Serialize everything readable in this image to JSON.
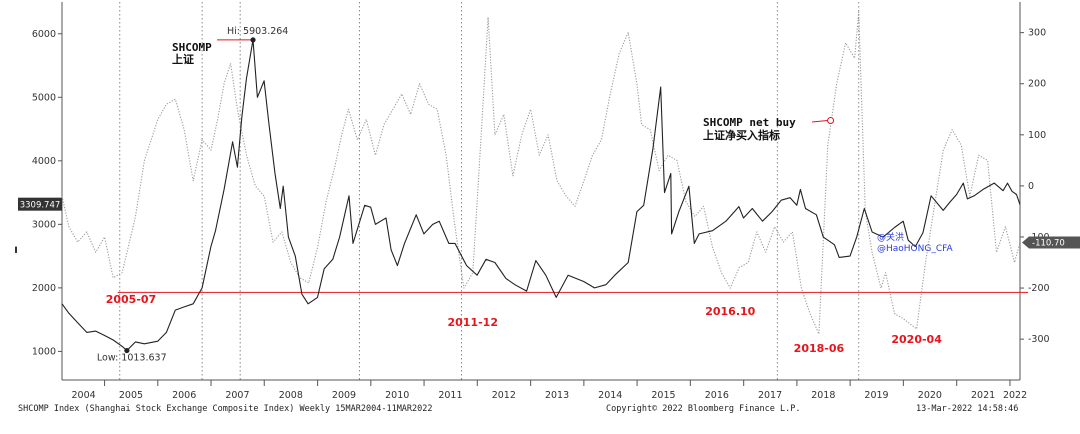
{
  "chart_data": {
    "type": "line",
    "x_range": [
      "2004-03-15",
      "2022-03-11"
    ],
    "x_ticks": [
      "2004",
      "2005",
      "2006",
      "2007",
      "2008",
      "2009",
      "2010",
      "2011",
      "2012",
      "2013",
      "2014",
      "2015",
      "2016",
      "2017",
      "2018",
      "2019",
      "2020",
      "2021",
      "2022"
    ],
    "y_left": {
      "ticks": [
        1000,
        2000,
        3000,
        4000,
        5000,
        6000
      ],
      "range": [
        550,
        6500
      ]
    },
    "y_right": {
      "ticks": [
        -300,
        -200,
        -100,
        0,
        100,
        200,
        300
      ],
      "range": [
        -380,
        360
      ]
    },
    "grid": false,
    "series": [
      {
        "name": "SHCOMP",
        "axis": "left",
        "color": "#222222",
        "style": "solid",
        "points": [
          [
            "2004-03-15",
            1750
          ],
          [
            "2004-05-01",
            1600
          ],
          [
            "2004-07-01",
            1450
          ],
          [
            "2004-09-01",
            1300
          ],
          [
            "2004-11-01",
            1320
          ],
          [
            "2005-01-01",
            1250
          ],
          [
            "2005-03-01",
            1180
          ],
          [
            "2005-05-01",
            1080
          ],
          [
            "2005-06-03",
            1013.6
          ],
          [
            "2005-08-01",
            1150
          ],
          [
            "2005-10-01",
            1120
          ],
          [
            "2005-12-31",
            1160
          ],
          [
            "2006-03-01",
            1300
          ],
          [
            "2006-05-01",
            1650
          ],
          [
            "2006-07-01",
            1700
          ],
          [
            "2006-09-01",
            1750
          ],
          [
            "2006-11-01",
            2000
          ],
          [
            "2006-12-31",
            2650
          ],
          [
            "2007-02-01",
            2900
          ],
          [
            "2007-04-01",
            3550
          ],
          [
            "2007-05-29",
            4300
          ],
          [
            "2007-07-01",
            3900
          ],
          [
            "2007-08-01",
            4700
          ],
          [
            "2007-09-01",
            5300
          ],
          [
            "2007-10-16",
            5903.3
          ],
          [
            "2007-11-15",
            5000
          ],
          [
            "2007-12-31",
            5260
          ],
          [
            "2008-02-01",
            4600
          ],
          [
            "2008-03-15",
            3800
          ],
          [
            "2008-04-20",
            3250
          ],
          [
            "2008-05-10",
            3600
          ],
          [
            "2008-06-15",
            2800
          ],
          [
            "2008-08-01",
            2500
          ],
          [
            "2008-09-15",
            1900
          ],
          [
            "2008-10-28",
            1750
          ],
          [
            "2008-12-31",
            1850
          ],
          [
            "2009-02-15",
            2300
          ],
          [
            "2009-04-15",
            2450
          ],
          [
            "2009-06-01",
            2800
          ],
          [
            "2009-08-04",
            3450
          ],
          [
            "2009-09-01",
            2700
          ],
          [
            "2009-11-20",
            3300
          ],
          [
            "2009-12-31",
            3270
          ],
          [
            "2010-02-01",
            3000
          ],
          [
            "2010-04-15",
            3100
          ],
          [
            "2010-05-20",
            2600
          ],
          [
            "2010-07-02",
            2350
          ],
          [
            "2010-08-20",
            2700
          ],
          [
            "2010-11-08",
            3150
          ],
          [
            "2010-12-31",
            2850
          ],
          [
            "2011-03-01",
            3000
          ],
          [
            "2011-04-15",
            3050
          ],
          [
            "2011-06-20",
            2700
          ],
          [
            "2011-08-01",
            2700
          ],
          [
            "2011-10-20",
            2350
          ],
          [
            "2011-12-31",
            2200
          ],
          [
            "2012-03-01",
            2450
          ],
          [
            "2012-05-01",
            2400
          ],
          [
            "2012-07-15",
            2150
          ],
          [
            "2012-09-15",
            2050
          ],
          [
            "2012-12-04",
            1950
          ],
          [
            "2013-02-05",
            2430
          ],
          [
            "2013-04-15",
            2200
          ],
          [
            "2013-06-25",
            1850
          ],
          [
            "2013-09-15",
            2200
          ],
          [
            "2013-12-31",
            2100
          ],
          [
            "2014-03-15",
            2000
          ],
          [
            "2014-06-01",
            2050
          ],
          [
            "2014-08-01",
            2200
          ],
          [
            "2014-11-01",
            2400
          ],
          [
            "2014-12-31",
            3200
          ],
          [
            "2015-02-15",
            3300
          ],
          [
            "2015-04-20",
            4200
          ],
          [
            "2015-06-12",
            5160
          ],
          [
            "2015-07-08",
            3500
          ],
          [
            "2015-08-20",
            3800
          ],
          [
            "2015-08-26",
            2850
          ],
          [
            "2015-10-15",
            3200
          ],
          [
            "2015-12-22",
            3600
          ],
          [
            "2016-01-28",
            2700
          ],
          [
            "2016-03-01",
            2850
          ],
          [
            "2016-06-01",
            2900
          ],
          [
            "2016-09-01",
            3050
          ],
          [
            "2016-11-29",
            3280
          ],
          [
            "2016-12-31",
            3100
          ],
          [
            "2017-03-01",
            3250
          ],
          [
            "2017-05-10",
            3050
          ],
          [
            "2017-07-15",
            3200
          ],
          [
            "2017-09-15",
            3380
          ],
          [
            "2017-11-15",
            3420
          ],
          [
            "2017-12-31",
            3300
          ],
          [
            "2018-01-25",
            3550
          ],
          [
            "2018-03-01",
            3250
          ],
          [
            "2018-05-15",
            3150
          ],
          [
            "2018-07-01",
            2800
          ],
          [
            "2018-09-15",
            2680
          ],
          [
            "2018-10-18",
            2480
          ],
          [
            "2018-12-31",
            2500
          ],
          [
            "2019-02-15",
            2800
          ],
          [
            "2019-04-08",
            3250
          ],
          [
            "2019-06-01",
            2880
          ],
          [
            "2019-08-15",
            2800
          ],
          [
            "2019-11-01",
            2950
          ],
          [
            "2019-12-31",
            3050
          ],
          [
            "2020-02-03",
            2750
          ],
          [
            "2020-03-23",
            2650
          ],
          [
            "2020-05-15",
            2870
          ],
          [
            "2020-07-09",
            3450
          ],
          [
            "2020-09-30",
            3220
          ],
          [
            "2020-11-15",
            3350
          ],
          [
            "2020-12-31",
            3470
          ],
          [
            "2021-02-15",
            3650
          ],
          [
            "2021-03-15",
            3400
          ],
          [
            "2021-05-01",
            3450
          ],
          [
            "2021-07-01",
            3550
          ],
          [
            "2021-09-15",
            3650
          ],
          [
            "2021-11-15",
            3530
          ],
          [
            "2021-12-15",
            3650
          ],
          [
            "2022-01-15",
            3520
          ],
          [
            "2022-02-15",
            3470
          ],
          [
            "2022-03-11",
            3309.747
          ]
        ]
      },
      {
        "name": "SHCOMP net buy",
        "axis": "right",
        "color": "#9a9a9a",
        "style": "dotted",
        "points": [
          [
            "2004-03-15",
            -20
          ],
          [
            "2004-05-01",
            -80
          ],
          [
            "2004-07-01",
            -110
          ],
          [
            "2004-09-01",
            -90
          ],
          [
            "2004-11-01",
            -130
          ],
          [
            "2005-01-01",
            -100
          ],
          [
            "2005-03-01",
            -180
          ],
          [
            "2005-05-01",
            -170
          ],
          [
            "2005-08-01",
            -60
          ],
          [
            "2005-10-01",
            50
          ],
          [
            "2006-01-01",
            130
          ],
          [
            "2006-03-01",
            160
          ],
          [
            "2006-05-01",
            170
          ],
          [
            "2006-07-01",
            110
          ],
          [
            "2006-09-01",
            10
          ],
          [
            "2006-11-01",
            90
          ],
          [
            "2007-01-01",
            70
          ],
          [
            "2007-02-15",
            130
          ],
          [
            "2007-04-01",
            200
          ],
          [
            "2007-05-15",
            240
          ],
          [
            "2007-07-01",
            150
          ],
          [
            "2007-09-01",
            60
          ],
          [
            "2007-11-01",
            0
          ],
          [
            "2008-01-01",
            -20
          ],
          [
            "2008-03-01",
            -110
          ],
          [
            "2008-05-01",
            -90
          ],
          [
            "2008-07-01",
            -150
          ],
          [
            "2008-09-01",
            -180
          ],
          [
            "2008-11-01",
            -190
          ],
          [
            "2009-01-01",
            -120
          ],
          [
            "2009-03-01",
            -30
          ],
          [
            "2009-05-01",
            40
          ],
          [
            "2009-06-15",
            100
          ],
          [
            "2009-08-01",
            150
          ],
          [
            "2009-10-01",
            90
          ],
          [
            "2009-12-01",
            130
          ],
          [
            "2010-02-01",
            60
          ],
          [
            "2010-04-01",
            120
          ],
          [
            "2010-06-01",
            150
          ],
          [
            "2010-08-01",
            180
          ],
          [
            "2010-10-01",
            140
          ],
          [
            "2010-12-01",
            200
          ],
          [
            "2011-02-01",
            160
          ],
          [
            "2011-04-01",
            150
          ],
          [
            "2011-06-01",
            60
          ],
          [
            "2011-08-01",
            -80
          ],
          [
            "2011-10-01",
            -200
          ],
          [
            "2011-12-01",
            -170
          ],
          [
            "2012-02-01",
            120
          ],
          [
            "2012-03-15",
            330
          ],
          [
            "2012-05-01",
            100
          ],
          [
            "2012-07-01",
            140
          ],
          [
            "2012-09-01",
            20
          ],
          [
            "2012-11-01",
            100
          ],
          [
            "2013-01-01",
            150
          ],
          [
            "2013-03-01",
            60
          ],
          [
            "2013-05-01",
            100
          ],
          [
            "2013-07-01",
            10
          ],
          [
            "2013-09-01",
            -20
          ],
          [
            "2013-11-01",
            -40
          ],
          [
            "2014-01-01",
            10
          ],
          [
            "2014-03-01",
            60
          ],
          [
            "2014-05-01",
            90
          ],
          [
            "2014-07-01",
            180
          ],
          [
            "2014-09-01",
            260
          ],
          [
            "2014-11-01",
            300
          ],
          [
            "2014-12-31",
            200
          ],
          [
            "2015-02-01",
            120
          ],
          [
            "2015-04-01",
            110
          ],
          [
            "2015-06-01",
            30
          ],
          [
            "2015-08-01",
            60
          ],
          [
            "2015-10-01",
            50
          ],
          [
            "2015-12-01",
            -30
          ],
          [
            "2016-02-01",
            -60
          ],
          [
            "2016-04-01",
            -40
          ],
          [
            "2016-06-01",
            -120
          ],
          [
            "2016-08-01",
            -170
          ],
          [
            "2016-10-01",
            -200
          ],
          [
            "2016-12-01",
            -160
          ],
          [
            "2017-02-01",
            -150
          ],
          [
            "2017-04-01",
            -90
          ],
          [
            "2017-06-01",
            -130
          ],
          [
            "2017-08-01",
            -80
          ],
          [
            "2017-10-01",
            -110
          ],
          [
            "2017-12-01",
            -90
          ],
          [
            "2018-02-01",
            -200
          ],
          [
            "2018-04-01",
            -250
          ],
          [
            "2018-06-01",
            -290
          ],
          [
            "2018-08-01",
            80
          ],
          [
            "2018-10-01",
            200
          ],
          [
            "2018-12-01",
            280
          ],
          [
            "2019-02-01",
            250
          ],
          [
            "2019-03-01",
            340
          ],
          [
            "2019-04-15",
            -50
          ],
          [
            "2019-06-01",
            -130
          ],
          [
            "2019-08-01",
            -200
          ],
          [
            "2019-09-01",
            -170
          ],
          [
            "2019-11-01",
            -250
          ],
          [
            "2020-01-01",
            -260
          ],
          [
            "2020-04-01",
            -280
          ],
          [
            "2020-06-01",
            -150
          ],
          [
            "2020-08-01",
            -40
          ],
          [
            "2020-10-01",
            70
          ],
          [
            "2020-12-01",
            110
          ],
          [
            "2021-02-01",
            80
          ],
          [
            "2021-04-01",
            -20
          ],
          [
            "2021-06-01",
            60
          ],
          [
            "2021-08-01",
            50
          ],
          [
            "2021-10-01",
            -130
          ],
          [
            "2021-12-01",
            -80
          ],
          [
            "2022-02-01",
            -150
          ],
          [
            "2022-03-11",
            -110.7
          ]
        ]
      }
    ],
    "hline": {
      "value": 1930,
      "axis": "left",
      "color": "#e8141b"
    },
    "annotations": {
      "high": {
        "label": "Hi: 5903.264",
        "date": "2007-10-16",
        "value": 5903.264
      },
      "low": {
        "label": "Low: 1013.637",
        "date": "2005-06-03",
        "value": 1013.637
      },
      "last_left": {
        "label": "3309.747",
        "value": 3309.747
      },
      "last_right": {
        "label": "-110.70",
        "value": -110.7
      },
      "shcomp_title": "SHCOMP",
      "shcomp_cn": "上证",
      "netbuy_title": "SHCOMP net buy",
      "netbuy_cn": "上证净买入指标",
      "netbuy_marker": {
        "date": "2018-08-20",
        "value": 128
      },
      "bottoms": [
        {
          "label": "2005-07",
          "date": "2005-07-01"
        },
        {
          "label": "2011-12",
          "date": "2011-12-01"
        },
        {
          "label": "2016.10",
          "date": "2016-10-01"
        },
        {
          "label": "2018-06",
          "date": "2018-06-01"
        },
        {
          "label": "2020-04",
          "date": "2020-04-01"
        }
      ],
      "watermark_1": "@关洪",
      "watermark_2": "@HaoHONG_CFA"
    }
  },
  "footer": {
    "left": "SHCOMP Index (Shanghai Stock Exchange Composite Index)  Weekly 15MAR2004-11MAR2022",
    "center": "Copyright© 2022 Bloomberg Finance L.P.",
    "right": "13-Mar-2022 14:58:46"
  },
  "colors": {
    "accent_red": "#e8141b",
    "index_line": "#222222",
    "netbuy_line": "#9a9a9a",
    "watermark": "#2a3cd8"
  }
}
